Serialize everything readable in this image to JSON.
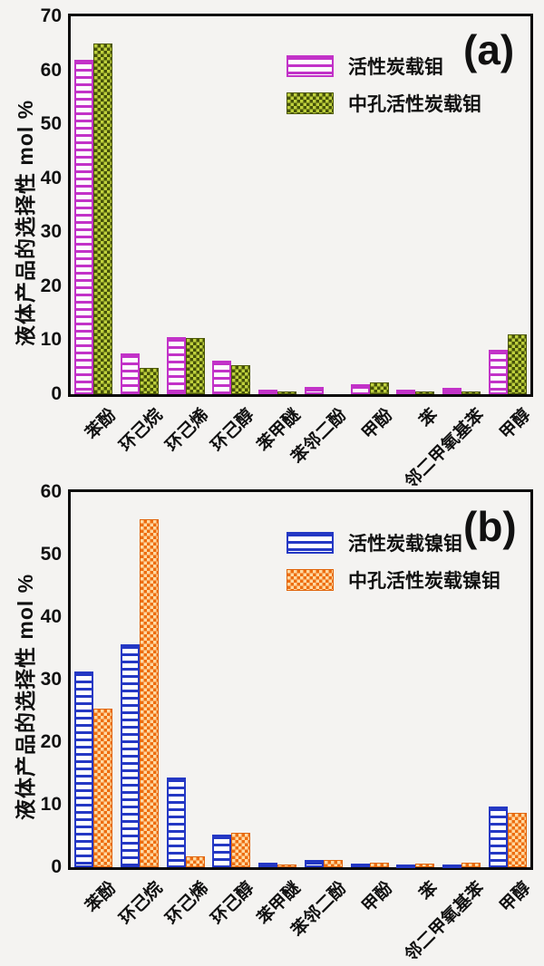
{
  "figure": {
    "background": "#f4f3f1",
    "frame_color": "#0a0a0a"
  },
  "chart_data": [
    {
      "type": "bar",
      "panel_label": "(a)",
      "ylabel": "液体产品的选择性 mol %",
      "xlabel": "",
      "ylim": [
        0,
        70
      ],
      "yticks": [
        0,
        10,
        20,
        30,
        40,
        50,
        60,
        70
      ],
      "grid": false,
      "legend_position": "top-center-right-inside",
      "categories": [
        "苯酚",
        "环己烷",
        "环己烯",
        "环己醇",
        "苯甲醚",
        "苯邻二酚",
        "甲酚",
        "苯",
        "邻二甲氧基苯",
        "甲醇"
      ],
      "series": [
        {
          "name": "活性炭载钼",
          "pattern": "magenta-stripes",
          "color": "#c232c8",
          "values": [
            62,
            7.6,
            10.6,
            6.2,
            0.9,
            1.4,
            1.9,
            0.8,
            1.1,
            8.3
          ]
        },
        {
          "name": "中孔活性炭载钼",
          "pattern": "green-checker",
          "color": "#9db414",
          "color2": "#46520a",
          "values": [
            65,
            4.9,
            10.4,
            5.3,
            0.45,
            0,
            2.1,
            0.4,
            0.5,
            11
          ]
        }
      ]
    },
    {
      "type": "bar",
      "panel_label": "(b)",
      "ylabel": "液体产品的选择性 mol %",
      "xlabel": "",
      "ylim": [
        0,
        60
      ],
      "yticks": [
        0,
        10,
        20,
        30,
        40,
        50,
        60
      ],
      "grid": false,
      "legend_position": "top-center-right-inside",
      "categories": [
        "苯酚",
        "环己烷",
        "环己烯",
        "环己醇",
        "苯甲醚",
        "苯邻二酚",
        "甲酚",
        "苯",
        "邻二甲氧基苯",
        "甲醇"
      ],
      "series": [
        {
          "name": "活性炭载镍钼",
          "pattern": "blue-stripes",
          "color": "#2438c4",
          "values": [
            31.3,
            35.7,
            14.3,
            5.2,
            0.7,
            1.2,
            0.55,
            0.4,
            0.5,
            9.7
          ]
        },
        {
          "name": "中孔活性炭载镍钼",
          "pattern": "orange-checker",
          "color": "#ed6d10",
          "color2": "#ffd9a2",
          "values": [
            25.4,
            55.6,
            1.7,
            5.5,
            0.45,
            1.1,
            0.7,
            0.6,
            0.7,
            8.7
          ]
        }
      ]
    }
  ]
}
